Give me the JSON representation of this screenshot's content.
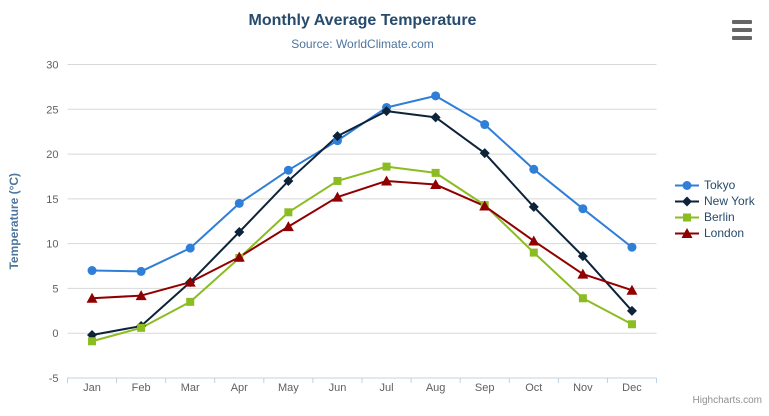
{
  "chart_data": {
    "type": "line",
    "title": "Monthly Average Temperature",
    "subtitle": "Source: WorldClimate.com",
    "xlabel": "",
    "ylabel": "Temperature (°C)",
    "categories": [
      "Jan",
      "Feb",
      "Mar",
      "Apr",
      "May",
      "Jun",
      "Jul",
      "Aug",
      "Sep",
      "Oct",
      "Nov",
      "Dec"
    ],
    "ylim": [
      -5,
      30
    ],
    "yticks": [
      -5,
      0,
      5,
      10,
      15,
      20,
      25,
      30
    ],
    "grid": true,
    "legend_position": "right",
    "series": [
      {
        "name": "Tokyo",
        "color": "#2f7ed8",
        "symbol": "circle",
        "values": [
          7.0,
          6.9,
          9.5,
          14.5,
          18.2,
          21.5,
          25.2,
          26.5,
          23.3,
          18.3,
          13.9,
          9.6
        ]
      },
      {
        "name": "New York",
        "color": "#0d233a",
        "symbol": "diamond",
        "values": [
          -0.2,
          0.8,
          5.7,
          11.3,
          17.0,
          22.0,
          24.8,
          24.1,
          20.1,
          14.1,
          8.6,
          2.5
        ]
      },
      {
        "name": "Berlin",
        "color": "#8bbc21",
        "symbol": "square",
        "values": [
          -0.9,
          0.6,
          3.5,
          8.4,
          13.5,
          17.0,
          18.6,
          17.9,
          14.3,
          9.0,
          3.9,
          1.0
        ]
      },
      {
        "name": "London",
        "color": "#910000",
        "symbol": "triangle",
        "values": [
          3.9,
          4.2,
          5.7,
          8.5,
          11.9,
          15.2,
          17.0,
          16.6,
          14.2,
          10.3,
          6.6,
          4.8
        ]
      }
    ],
    "credits": "Highcharts.com"
  },
  "colors": {
    "title": "#274b6d",
    "subtitle": "#4d759e",
    "axis_title": "#4d759e",
    "tick_label": "#606060",
    "gridline": "#d8d8d8",
    "axis_line": "#c0d0e0",
    "legend_text": "#274b6d",
    "credits": "#909090",
    "menu_icon": "#666666"
  },
  "icons": {
    "context_menu": "hamburger-icon"
  }
}
